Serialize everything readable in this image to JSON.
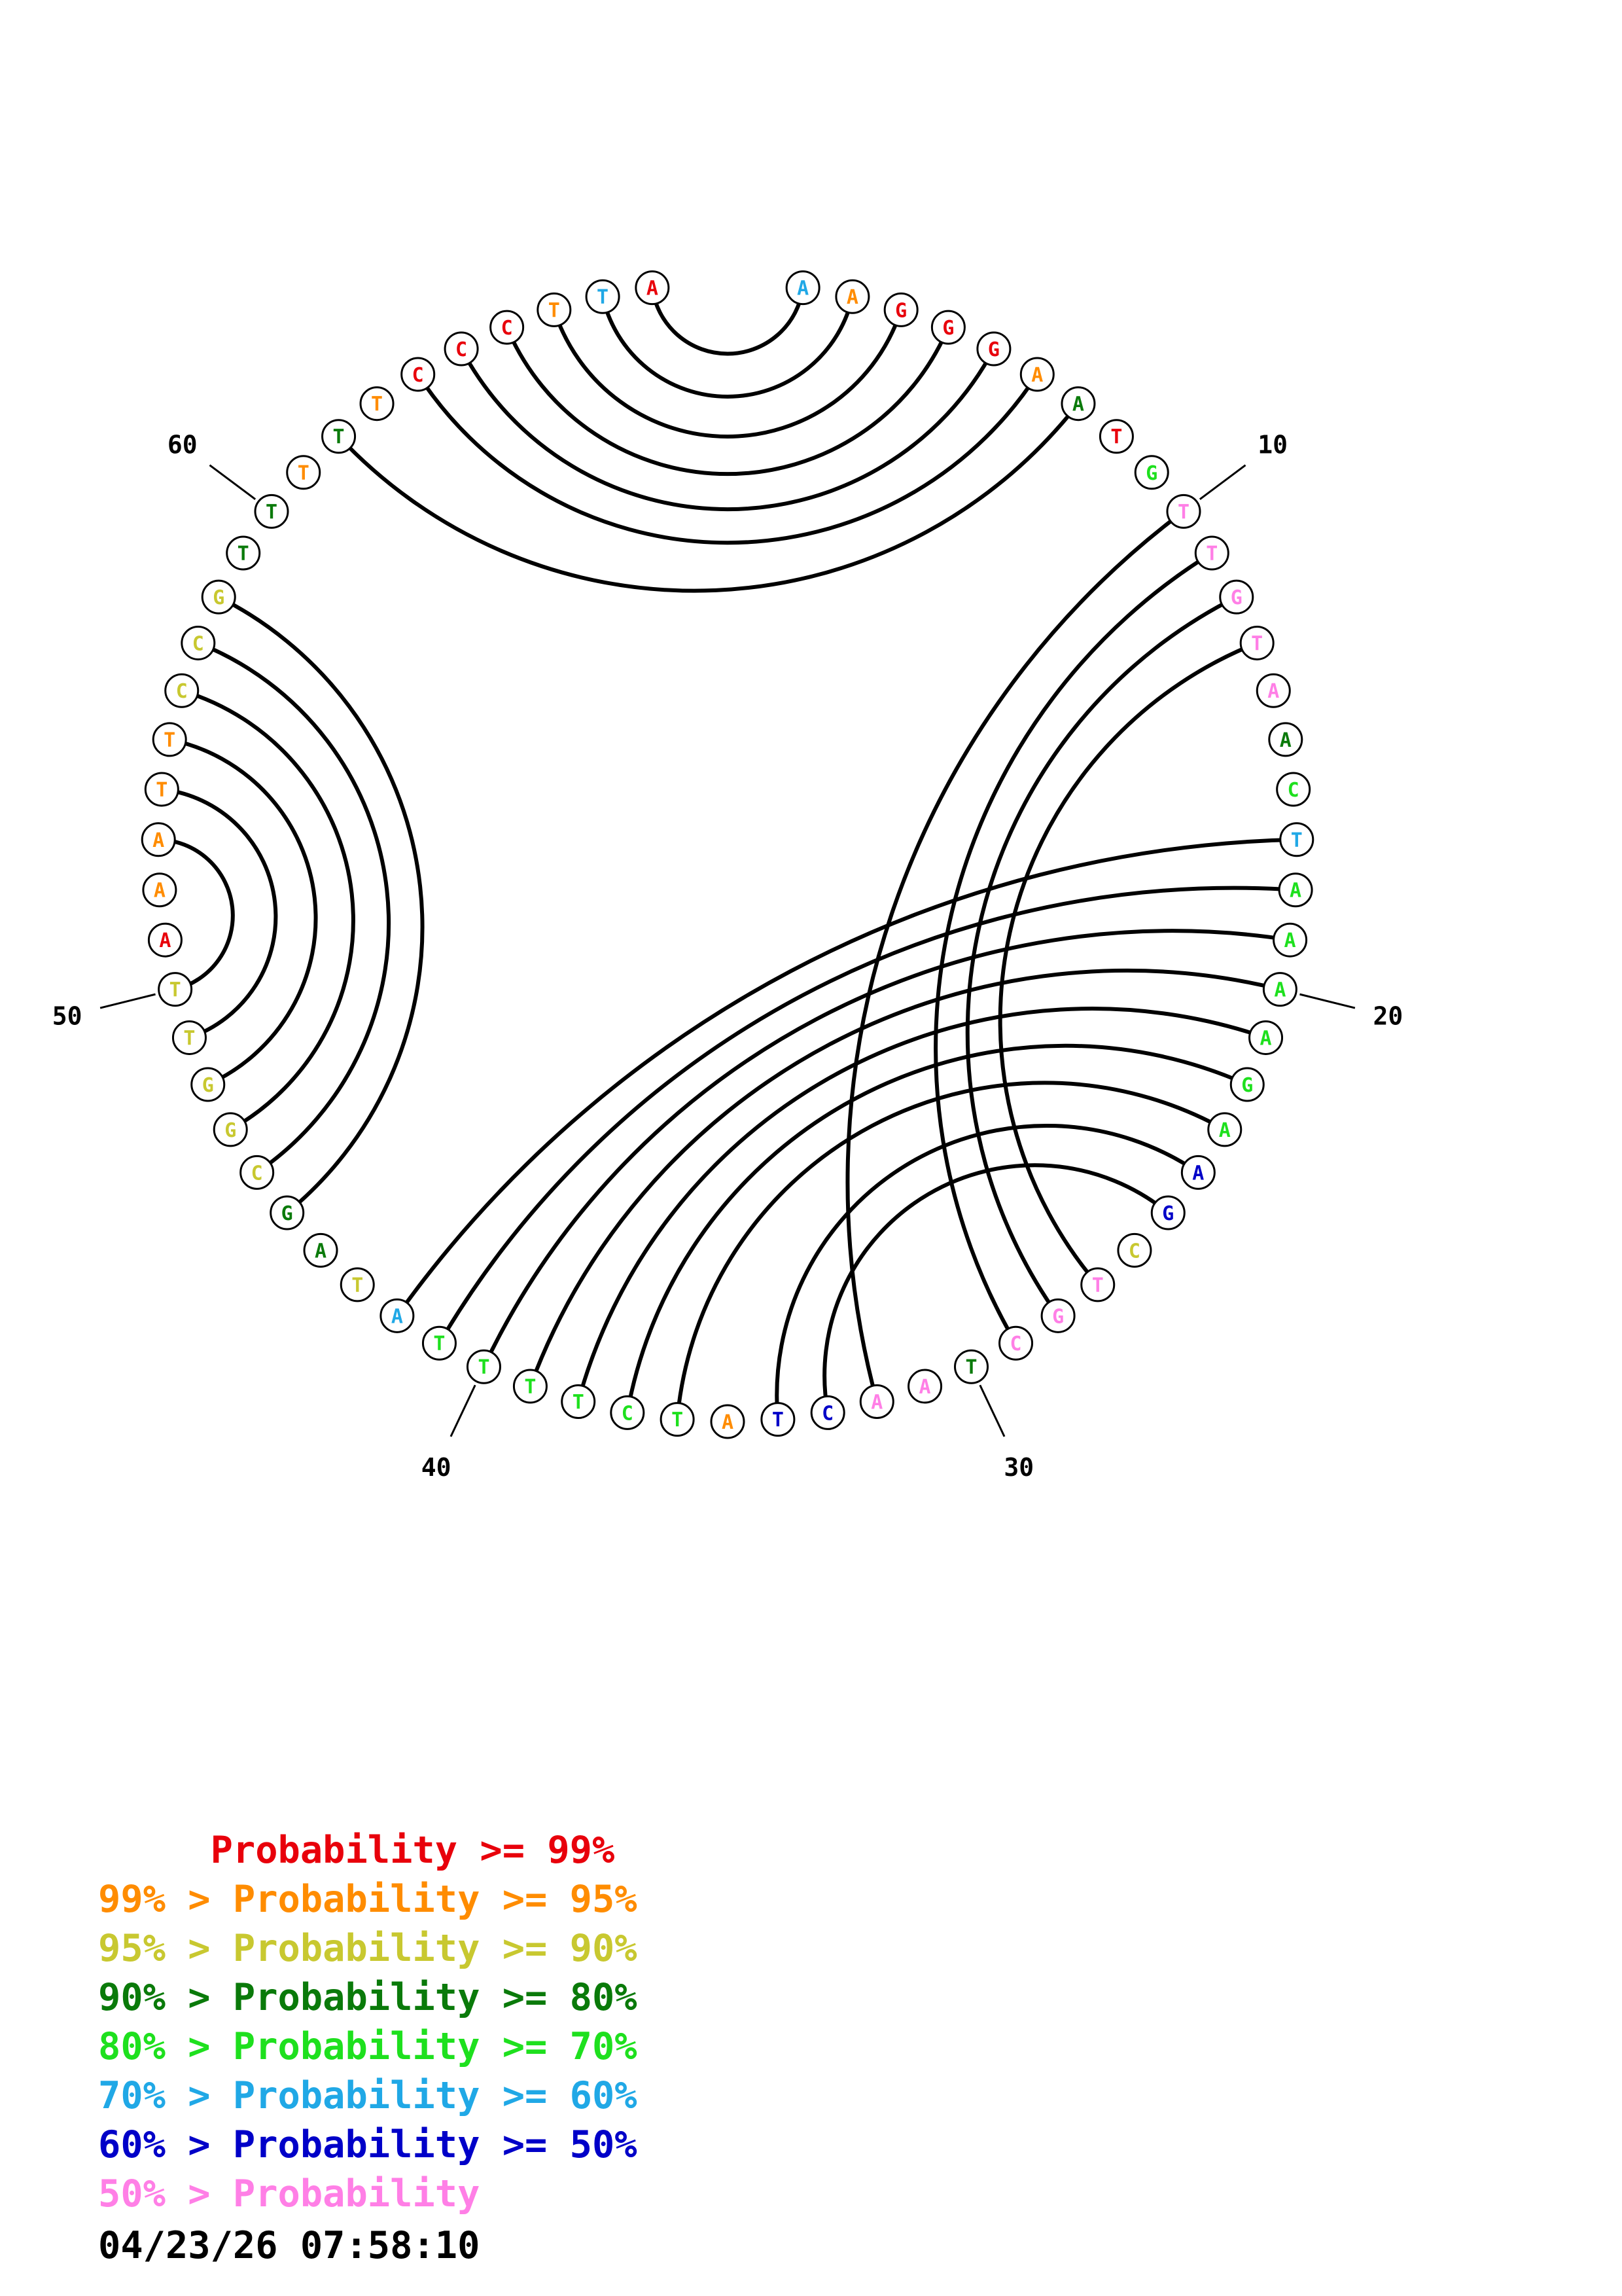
{
  "colors": {
    "p99": "#e8000b",
    "p95": "#ff8c00",
    "p90": "#c8c830",
    "p80": "#0a7a0a",
    "p70": "#1ee01e",
    "p60": "#20a8e6",
    "p50": "#0000c8",
    "plow": "#ff7fe6"
  },
  "nucleotides": [
    {
      "n": 1,
      "base": "A",
      "c": "p60"
    },
    {
      "n": 2,
      "base": "A",
      "c": "p95"
    },
    {
      "n": 3,
      "base": "G",
      "c": "p99"
    },
    {
      "n": 4,
      "base": "G",
      "c": "p99"
    },
    {
      "n": 5,
      "base": "G",
      "c": "p99"
    },
    {
      "n": 6,
      "base": "A",
      "c": "p95"
    },
    {
      "n": 7,
      "base": "A",
      "c": "p80"
    },
    {
      "n": 8,
      "base": "T",
      "c": "p99"
    },
    {
      "n": 9,
      "base": "G",
      "c": "p70"
    },
    {
      "n": 10,
      "base": "T",
      "c": "plow"
    },
    {
      "n": 11,
      "base": "T",
      "c": "plow"
    },
    {
      "n": 12,
      "base": "G",
      "c": "plow"
    },
    {
      "n": 13,
      "base": "T",
      "c": "plow"
    },
    {
      "n": 14,
      "base": "A",
      "c": "plow"
    },
    {
      "n": 15,
      "base": "A",
      "c": "p80"
    },
    {
      "n": 16,
      "base": "C",
      "c": "p70"
    },
    {
      "n": 17,
      "base": "T",
      "c": "p60"
    },
    {
      "n": 18,
      "base": "A",
      "c": "p70"
    },
    {
      "n": 19,
      "base": "A",
      "c": "p70"
    },
    {
      "n": 20,
      "base": "A",
      "c": "p70"
    },
    {
      "n": 21,
      "base": "A",
      "c": "p70"
    },
    {
      "n": 22,
      "base": "G",
      "c": "p70"
    },
    {
      "n": 23,
      "base": "A",
      "c": "p70"
    },
    {
      "n": 24,
      "base": "A",
      "c": "p50"
    },
    {
      "n": 25,
      "base": "G",
      "c": "p50"
    },
    {
      "n": 26,
      "base": "C",
      "c": "p90"
    },
    {
      "n": 27,
      "base": "T",
      "c": "plow"
    },
    {
      "n": 28,
      "base": "G",
      "c": "plow"
    },
    {
      "n": 29,
      "base": "C",
      "c": "plow"
    },
    {
      "n": 30,
      "base": "T",
      "c": "p80"
    },
    {
      "n": 31,
      "base": "A",
      "c": "plow"
    },
    {
      "n": 32,
      "base": "A",
      "c": "plow"
    },
    {
      "n": 33,
      "base": "C",
      "c": "p50"
    },
    {
      "n": 34,
      "base": "T",
      "c": "p50"
    },
    {
      "n": 35,
      "base": "A",
      "c": "p95"
    },
    {
      "n": 36,
      "base": "T",
      "c": "p70"
    },
    {
      "n": 37,
      "base": "C",
      "c": "p70"
    },
    {
      "n": 38,
      "base": "T",
      "c": "p70"
    },
    {
      "n": 39,
      "base": "T",
      "c": "p70"
    },
    {
      "n": 40,
      "base": "T",
      "c": "p70"
    },
    {
      "n": 41,
      "base": "T",
      "c": "p70"
    },
    {
      "n": 42,
      "base": "A",
      "c": "p60"
    },
    {
      "n": 43,
      "base": "T",
      "c": "p90"
    },
    {
      "n": 44,
      "base": "A",
      "c": "p80"
    },
    {
      "n": 45,
      "base": "G",
      "c": "p80"
    },
    {
      "n": 46,
      "base": "C",
      "c": "p90"
    },
    {
      "n": 47,
      "base": "G",
      "c": "p90"
    },
    {
      "n": 48,
      "base": "G",
      "c": "p90"
    },
    {
      "n": 49,
      "base": "T",
      "c": "p90"
    },
    {
      "n": 50,
      "base": "T",
      "c": "p90"
    },
    {
      "n": 51,
      "base": "A",
      "c": "p99"
    },
    {
      "n": 52,
      "base": "A",
      "c": "p95"
    },
    {
      "n": 53,
      "base": "A",
      "c": "p95"
    },
    {
      "n": 54,
      "base": "T",
      "c": "p95"
    },
    {
      "n": 55,
      "base": "T",
      "c": "p95"
    },
    {
      "n": 56,
      "base": "C",
      "c": "p90"
    },
    {
      "n": 57,
      "base": "C",
      "c": "p90"
    },
    {
      "n": 58,
      "base": "G",
      "c": "p90"
    },
    {
      "n": 59,
      "base": "T",
      "c": "p80"
    },
    {
      "n": 60,
      "base": "T",
      "c": "p80"
    },
    {
      "n": 61,
      "base": "T",
      "c": "p95"
    },
    {
      "n": 62,
      "base": "T",
      "c": "p80"
    },
    {
      "n": 63,
      "base": "T",
      "c": "p95"
    },
    {
      "n": 64,
      "base": "C",
      "c": "p99"
    },
    {
      "n": 65,
      "base": "C",
      "c": "p99"
    },
    {
      "n": 66,
      "base": "C",
      "c": "p99"
    },
    {
      "n": 67,
      "base": "T",
      "c": "p95"
    },
    {
      "n": 68,
      "base": "T",
      "c": "p60"
    },
    {
      "n": 69,
      "base": "A",
      "c": "p99"
    }
  ],
  "pairs": [
    [
      1,
      69
    ],
    [
      2,
      68
    ],
    [
      3,
      67
    ],
    [
      4,
      66
    ],
    [
      5,
      65
    ],
    [
      6,
      64
    ],
    [
      7,
      62
    ],
    [
      10,
      32
    ],
    [
      11,
      29
    ],
    [
      12,
      28
    ],
    [
      13,
      27
    ],
    [
      17,
      42
    ],
    [
      18,
      41
    ],
    [
      19,
      40
    ],
    [
      20,
      39
    ],
    [
      21,
      38
    ],
    [
      22,
      37
    ],
    [
      23,
      36
    ],
    [
      24,
      34
    ],
    [
      25,
      33
    ],
    [
      45,
      58
    ],
    [
      46,
      57
    ],
    [
      47,
      56
    ],
    [
      48,
      55
    ],
    [
      49,
      54
    ],
    [
      50,
      53
    ]
  ],
  "ticks": [
    {
      "n": 10,
      "label": "10"
    },
    {
      "n": 20,
      "label": "20"
    },
    {
      "n": 30,
      "label": "30"
    },
    {
      "n": 40,
      "label": "40"
    },
    {
      "n": 50,
      "label": "50"
    },
    {
      "n": 60,
      "label": "60"
    }
  ],
  "legend": [
    {
      "text": "     Probability >= 99%",
      "c": "p99"
    },
    {
      "text": "99% > Probability >= 95%",
      "c": "p95"
    },
    {
      "text": "95% > Probability >= 90%",
      "c": "p90"
    },
    {
      "text": "90% > Probability >= 80%",
      "c": "p80"
    },
    {
      "text": "80% > Probability >= 70%",
      "c": "p70"
    },
    {
      "text": "70% > Probability >= 60%",
      "c": "p60"
    },
    {
      "text": "60% > Probability >= 50%",
      "c": "p50"
    },
    {
      "text": "50% > Probability",
      "c": "plow"
    }
  ],
  "timestamp": "04/23/26 07:58:10"
}
